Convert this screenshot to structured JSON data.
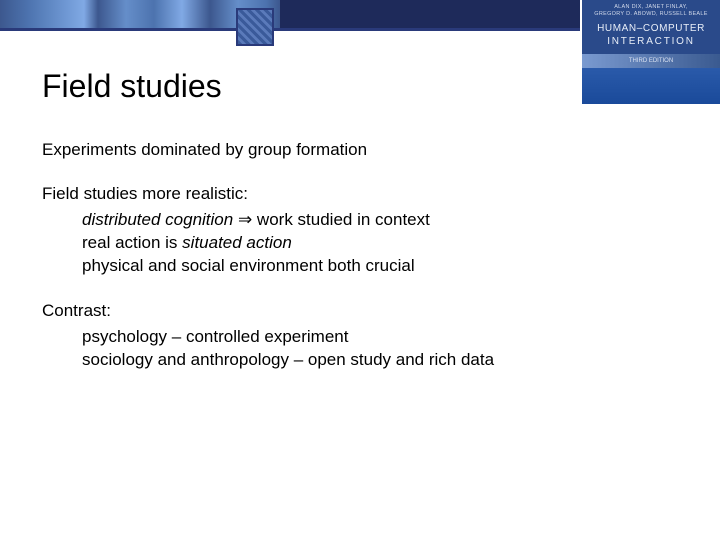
{
  "header": {
    "book_authors_line1": "ALAN DIX, JANET FINLAY,",
    "book_authors_line2": "GREGORY D. ABOWD, RUSSELL BEALE",
    "book_title_line1": "HUMAN–COMPUTER",
    "book_title_line2": "INTERACTION",
    "book_edition": "THIRD EDITION"
  },
  "slide": {
    "title": "Field studies",
    "line1": "Experiments dominated by group formation",
    "line2": "Field studies more realistic:",
    "bullets1": {
      "b1_prefix_italic": "distributed cognition",
      "b1_arrow": " ⇒ ",
      "b1_suffix": "work studied in context",
      "b2_prefix": "real action is ",
      "b2_italic": "situated action",
      "b3": "physical and social environment both crucial"
    },
    "line3": "Contrast:",
    "bullets2": {
      "c1": "psychology – controlled experiment",
      "c2": "sociology and anthropology – open study and rich data"
    }
  },
  "colors": {
    "navy": "#1e2a5a",
    "blue": "#2a4a8a",
    "text": "#000000",
    "bg": "#ffffff"
  }
}
